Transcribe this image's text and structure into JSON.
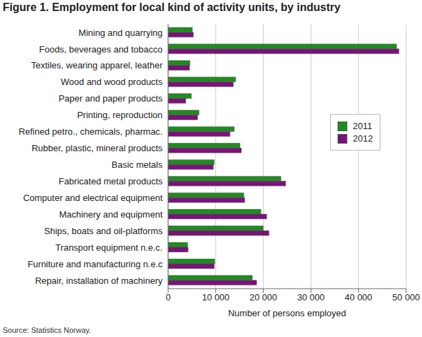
{
  "chart_data": {
    "type": "bar",
    "orientation": "horizontal",
    "title": "Figure 1. Employment for local kind of activity units, by industry",
    "source": "Source: Statistics Norway.",
    "x_label": "Number of persons employed",
    "categories": [
      "Mining and quarrying",
      "Foods, beverages and tobacco",
      "Textiles, wearing apparel, leather",
      "Wood and wood products",
      "Paper and paper products",
      "Printing, reproduction",
      "Refined petro., chemicals, pharmac.",
      "Rubber, plastic, mineral products",
      "Basic metals",
      "Fabricated metal products",
      "Computer and electrical equipment",
      "Machinery and equipment",
      "Ships, boats and oil-platforms",
      "Transport equipment n.e.c.",
      "Furniture and manufacturing n.e.c",
      "Repair, installation of machinery"
    ],
    "series": [
      {
        "name": "2011",
        "color": "#1e8c1e",
        "values": [
          5100,
          48000,
          4600,
          14200,
          4900,
          6500,
          13900,
          15100,
          9700,
          23700,
          15900,
          19500,
          20000,
          4100,
          9800,
          17700
        ]
      },
      {
        "name": "2012",
        "color": "#7b127b",
        "values": [
          5300,
          48500,
          4500,
          13700,
          3700,
          6200,
          13000,
          15400,
          9500,
          24700,
          16100,
          20700,
          21200,
          4200,
          9700,
          18600
        ]
      }
    ],
    "xlim": [
      0,
      50000
    ],
    "xticks": [
      0,
      {
        "value": 10000,
        "label": "10 000"
      },
      {
        "value": 20000,
        "label": "20 000"
      },
      {
        "value": 30000,
        "label": "30 000"
      },
      {
        "value": 40000,
        "label": "40 000"
      },
      {
        "value": 50000,
        "label": "50 000"
      }
    ],
    "grid": true,
    "legend": "right"
  }
}
